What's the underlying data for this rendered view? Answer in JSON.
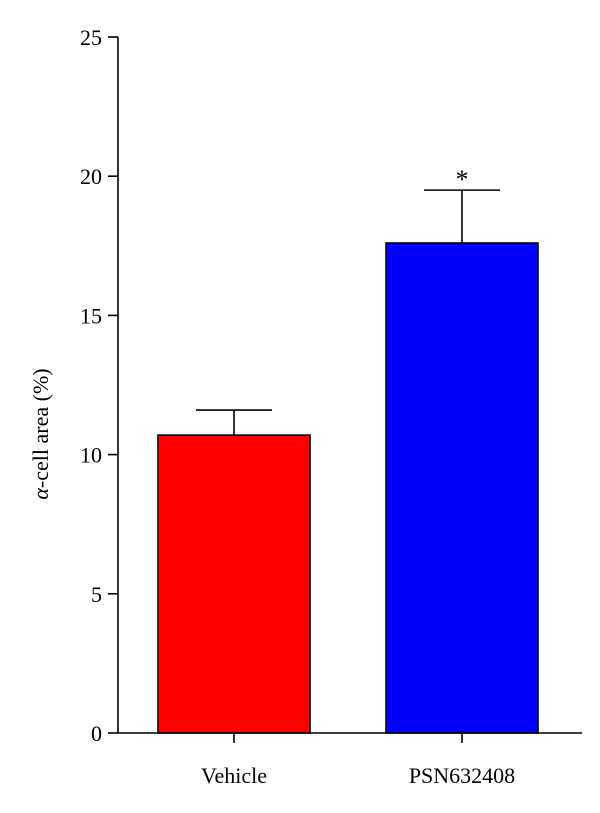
{
  "chart_data": {
    "type": "bar",
    "title": "",
    "xlabel": "",
    "ylabel_symbol": "α",
    "ylabel_rest": "-cell area (%)",
    "ylim": [
      0,
      25
    ],
    "yticks": [
      0,
      5,
      10,
      15,
      20,
      25
    ],
    "ytick_labels": [
      "0",
      "5",
      "10",
      "15",
      "20",
      "25"
    ],
    "categories": [
      "Vehicle",
      "PSN632408"
    ],
    "values": [
      10.7,
      17.6
    ],
    "errors": [
      0.9,
      1.9
    ],
    "significance": [
      "",
      "*"
    ],
    "bar_colors": [
      "#ff0000",
      "#0000ff"
    ],
    "grid": false,
    "legend": "none"
  }
}
